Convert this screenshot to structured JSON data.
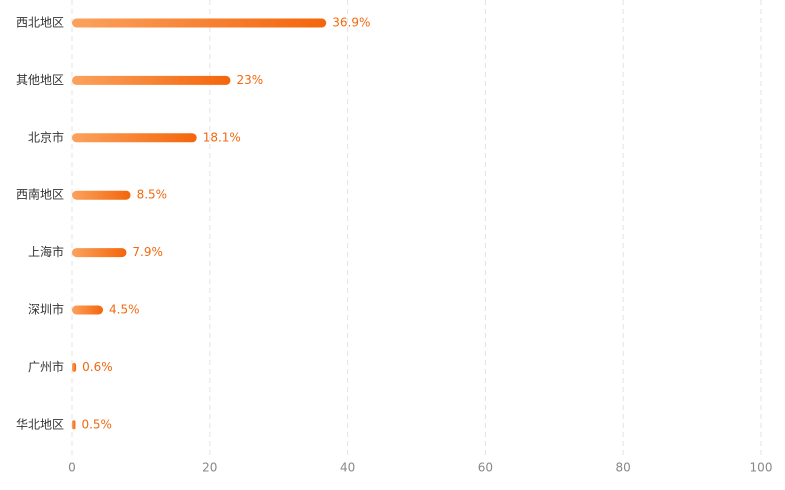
{
  "chart_data": {
    "type": "hbar",
    "categories": [
      "西北地区",
      "其他地区",
      "北京市",
      "西南地区",
      "上海市",
      "深圳市",
      "广州市",
      "华北地区"
    ],
    "values": [
      36.9,
      23,
      18.1,
      8.5,
      7.9,
      4.5,
      0.6,
      0.5
    ],
    "value_labels": [
      "36.9%",
      "23%",
      "18.1%",
      "8.5%",
      "7.9%",
      "4.5%",
      "0.6%",
      "0.5%"
    ],
    "gradient": [
      "#fba25e",
      "#f4650b"
    ],
    "xlim": [
      0,
      100
    ],
    "xticks": [
      0,
      20,
      40,
      60,
      80,
      100
    ],
    "grid": true
  }
}
